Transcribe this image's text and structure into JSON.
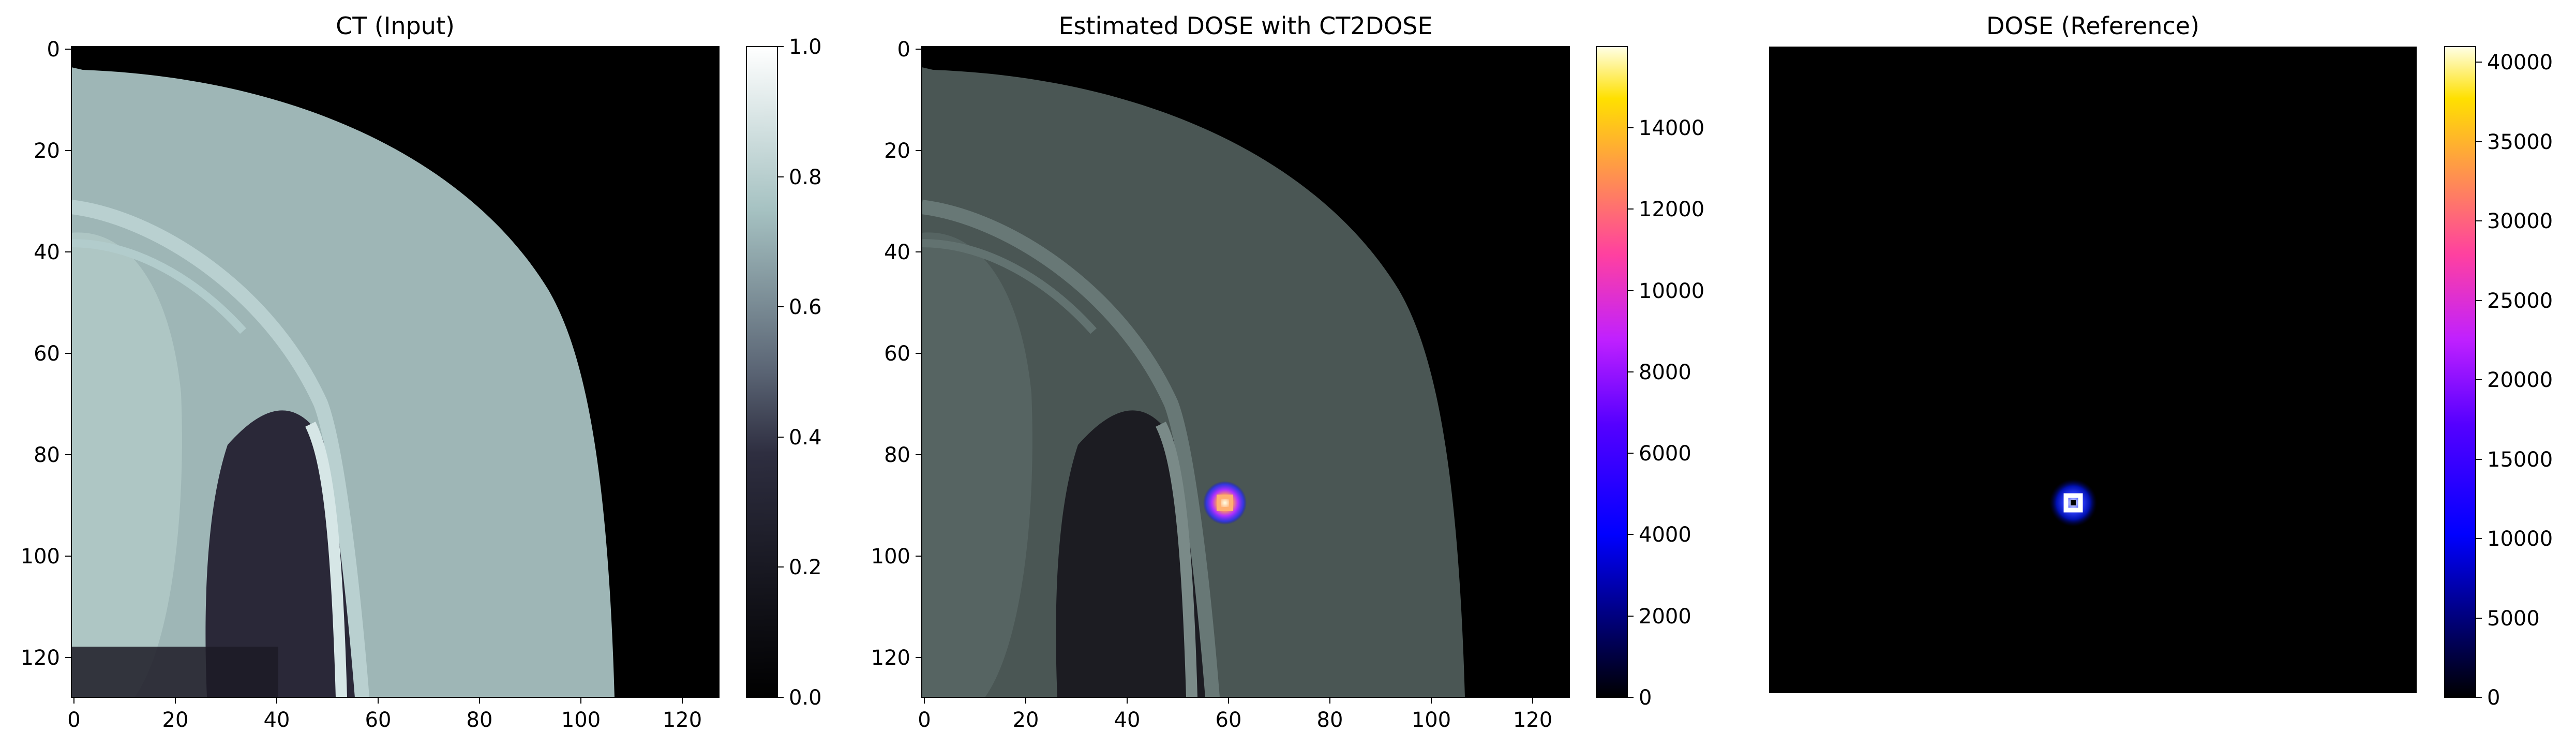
{
  "chart_data": [
    {
      "type": "heatmap",
      "title": "CT (Input)",
      "image": "CT axial slice (bone colormap)",
      "xlim": [
        0,
        127
      ],
      "ylim": [
        127,
        0
      ],
      "xticks": [
        "0",
        "20",
        "40",
        "60",
        "80",
        "100",
        "120"
      ],
      "yticks": [
        "0",
        "20",
        "40",
        "60",
        "80",
        "100",
        "120"
      ],
      "colorbar": {
        "colormap": "bone",
        "range": [
          0.0,
          1.0
        ],
        "ticks": [
          "0.0",
          "0.2",
          "0.4",
          "0.6",
          "0.8",
          "1.0"
        ]
      }
    },
    {
      "type": "heatmap",
      "title": "Estimated DOSE with CT2DOSE",
      "image": "CT overlay with estimated dose (gnuplot2 colormap)",
      "hotspot": {
        "x": 60,
        "y": 90
      },
      "xlim": [
        0,
        127
      ],
      "ylim": [
        127,
        0
      ],
      "xticks": [
        "0",
        "20",
        "40",
        "60",
        "80",
        "100",
        "120"
      ],
      "yticks": [
        "0",
        "20",
        "40",
        "60",
        "80",
        "100",
        "120"
      ],
      "colorbar": {
        "colormap": "gnuplot2",
        "range": [
          0,
          16000
        ],
        "ticks": [
          "0",
          "2000",
          "4000",
          "6000",
          "8000",
          "10000",
          "12000",
          "14000"
        ]
      }
    },
    {
      "type": "heatmap",
      "title": "DOSE (Reference)",
      "image": "Reference dose map (gnuplot2 colormap)",
      "hotspot": {
        "x": 60,
        "y": 90
      },
      "axis": "off",
      "colorbar": {
        "colormap": "gnuplot2",
        "range": [
          0,
          41000
        ],
        "ticks": [
          "0",
          "5000",
          "10000",
          "15000",
          "20000",
          "25000",
          "30000",
          "35000",
          "40000"
        ]
      }
    }
  ]
}
